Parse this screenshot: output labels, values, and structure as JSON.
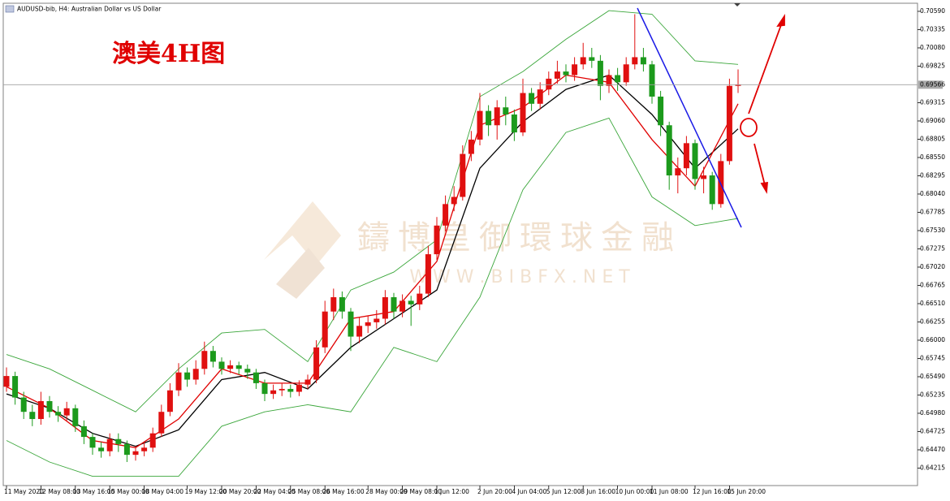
{
  "chart_data": {
    "type": "candlestick",
    "title": "澳美4H图",
    "subtitle": "AUDUSD-bib, H4: Australian Dollar vs US Dollar",
    "watermark": [
      "鑄博皇御環球金融",
      "W W W . B I B F X . N E T"
    ],
    "up_color": "#e01010",
    "down_color": "#1c9a1c",
    "ylim": [
      0.63971,
      0.70703
    ],
    "yticks": [
      {
        "value": 0.7059,
        "label": "0.70590"
      },
      {
        "value": 0.70335,
        "label": "0.70335"
      },
      {
        "value": 0.7008,
        "label": "0.70080"
      },
      {
        "value": 0.69825,
        "label": "0.69825"
      },
      {
        "value": 0.69315,
        "label": "0.69315"
      },
      {
        "value": 0.6906,
        "label": "0.69060"
      },
      {
        "value": 0.68805,
        "label": "0.68805"
      },
      {
        "value": 0.6855,
        "label": "0.68550"
      },
      {
        "value": 0.68295,
        "label": "0.68295"
      },
      {
        "value": 0.6804,
        "label": "0.68040"
      },
      {
        "value": 0.67785,
        "label": "0.67785"
      },
      {
        "value": 0.6753,
        "label": "0.67530"
      },
      {
        "value": 0.67275,
        "label": "0.67275"
      },
      {
        "value": 0.6702,
        "label": "0.67020"
      },
      {
        "value": 0.66765,
        "label": "0.66765"
      },
      {
        "value": 0.6651,
        "label": "0.66510"
      },
      {
        "value": 0.66255,
        "label": "0.66255"
      },
      {
        "value": 0.66,
        "label": "0.66000"
      },
      {
        "value": 0.65745,
        "label": "0.65745"
      },
      {
        "value": 0.6549,
        "label": "0.65490"
      },
      {
        "value": 0.65235,
        "label": "0.65235"
      },
      {
        "value": 0.6498,
        "label": "0.64980"
      },
      {
        "value": 0.64725,
        "label": "0.64725"
      },
      {
        "value": 0.6447,
        "label": "0.64470"
      },
      {
        "value": 0.64215,
        "label": "0.64215"
      }
    ],
    "current_price": {
      "value": 0.69566,
      "label": "0.69566"
    },
    "categories": [
      "11 May 2020",
      null,
      null,
      null,
      "12 May 08:00",
      null,
      null,
      null,
      "13 May 16:00",
      null,
      null,
      null,
      "15 May 00:00",
      null,
      null,
      null,
      "18 May 04:00",
      null,
      null,
      null,
      null,
      "19 May 12:00",
      null,
      null,
      null,
      "20 May 20:00",
      null,
      null,
      null,
      "22 May 04:00",
      null,
      null,
      null,
      "25 May 08:00",
      null,
      null,
      null,
      "26 May 16:00",
      null,
      null,
      null,
      null,
      "28 May 00:00",
      null,
      null,
      null,
      "29 May 08:00",
      null,
      null,
      null,
      "1 Jun 12:00",
      null,
      null,
      null,
      null,
      "2 Jun 20:00",
      null,
      null,
      null,
      "4 Jun 04:00",
      null,
      null,
      null,
      "5 Jun 12:00",
      null,
      null,
      null,
      "8 Jun 16:00",
      null,
      null,
      null,
      "10 Jun 00:00",
      null,
      null,
      null,
      "11 Jun 08:00",
      null,
      null,
      null,
      null,
      "12 Jun 16:00",
      null,
      null,
      null,
      "15 Jun 20:00",
      null
    ],
    "candles": [
      [
        0.6535,
        0.6562,
        0.6528,
        0.655
      ],
      [
        0.655,
        0.6556,
        0.651,
        0.652
      ],
      [
        0.652,
        0.6528,
        0.649,
        0.65
      ],
      [
        0.65,
        0.651,
        0.648,
        0.649
      ],
      [
        0.649,
        0.6528,
        0.6482,
        0.6515
      ],
      [
        0.6515,
        0.6522,
        0.6492,
        0.65
      ],
      [
        0.65,
        0.6508,
        0.6486,
        0.6495
      ],
      [
        0.6495,
        0.6514,
        0.6488,
        0.6505
      ],
      [
        0.6505,
        0.651,
        0.6472,
        0.648
      ],
      [
        0.648,
        0.6488,
        0.6455,
        0.6465
      ],
      [
        0.6465,
        0.647,
        0.644,
        0.645
      ],
      [
        0.645,
        0.6458,
        0.6436,
        0.6445
      ],
      [
        0.6445,
        0.647,
        0.6438,
        0.6462
      ],
      [
        0.6462,
        0.647,
        0.6444,
        0.6455
      ],
      [
        0.6455,
        0.646,
        0.643,
        0.644
      ],
      [
        0.644,
        0.6452,
        0.6432,
        0.6445
      ],
      [
        0.6445,
        0.6458,
        0.6438,
        0.645
      ],
      [
        0.645,
        0.6478,
        0.6444,
        0.647
      ],
      [
        0.647,
        0.651,
        0.6465,
        0.65
      ],
      [
        0.65,
        0.654,
        0.6494,
        0.653
      ],
      [
        0.653,
        0.6568,
        0.6522,
        0.6555
      ],
      [
        0.6555,
        0.6562,
        0.6535,
        0.6545
      ],
      [
        0.6545,
        0.6572,
        0.6538,
        0.656
      ],
      [
        0.656,
        0.6598,
        0.6552,
        0.6585
      ],
      [
        0.6585,
        0.6592,
        0.6562,
        0.657
      ],
      [
        0.657,
        0.6576,
        0.6552,
        0.656
      ],
      [
        0.656,
        0.6572,
        0.6554,
        0.6565
      ],
      [
        0.6565,
        0.657,
        0.6552,
        0.656
      ],
      [
        0.656,
        0.6566,
        0.6546,
        0.6555
      ],
      [
        0.6555,
        0.656,
        0.6532,
        0.654
      ],
      [
        0.654,
        0.6545,
        0.6515,
        0.6525
      ],
      [
        0.6525,
        0.6538,
        0.6518,
        0.653
      ],
      [
        0.653,
        0.654,
        0.6522,
        0.6532
      ],
      [
        0.6532,
        0.6538,
        0.652,
        0.6528
      ],
      [
        0.6528,
        0.6544,
        0.6522,
        0.6538
      ],
      [
        0.6538,
        0.6552,
        0.6532,
        0.6545
      ],
      [
        0.6545,
        0.66,
        0.654,
        0.659
      ],
      [
        0.659,
        0.6655,
        0.6582,
        0.664
      ],
      [
        0.664,
        0.6672,
        0.6628,
        0.666
      ],
      [
        0.666,
        0.6668,
        0.663,
        0.664
      ],
      [
        0.664,
        0.6645,
        0.6585,
        0.6605
      ],
      [
        0.6605,
        0.6632,
        0.6596,
        0.662
      ],
      [
        0.662,
        0.6634,
        0.661,
        0.6625
      ],
      [
        0.6625,
        0.6642,
        0.6616,
        0.663
      ],
      [
        0.663,
        0.667,
        0.6622,
        0.666
      ],
      [
        0.666,
        0.6666,
        0.663,
        0.664
      ],
      [
        0.664,
        0.6664,
        0.6632,
        0.6655
      ],
      [
        0.6655,
        0.6662,
        0.662,
        0.665
      ],
      [
        0.665,
        0.6676,
        0.6642,
        0.6665
      ],
      [
        0.6665,
        0.6732,
        0.666,
        0.672
      ],
      [
        0.672,
        0.6772,
        0.6712,
        0.676
      ],
      [
        0.676,
        0.6802,
        0.6752,
        0.679
      ],
      [
        0.679,
        0.6815,
        0.678,
        0.68
      ],
      [
        0.68,
        0.6872,
        0.6795,
        0.686
      ],
      [
        0.686,
        0.6892,
        0.685,
        0.688
      ],
      [
        0.688,
        0.6945,
        0.6872,
        0.692
      ],
      [
        0.692,
        0.6928,
        0.6885,
        0.69
      ],
      [
        0.69,
        0.6935,
        0.688,
        0.6925
      ],
      [
        0.6925,
        0.694,
        0.69,
        0.6915
      ],
      [
        0.6915,
        0.6922,
        0.6878,
        0.689
      ],
      [
        0.689,
        0.6965,
        0.6885,
        0.6945
      ],
      [
        0.6945,
        0.6952,
        0.692,
        0.693
      ],
      [
        0.693,
        0.696,
        0.6922,
        0.695
      ],
      [
        0.695,
        0.6975,
        0.6942,
        0.6965
      ],
      [
        0.6965,
        0.699,
        0.6958,
        0.6975
      ],
      [
        0.6975,
        0.6985,
        0.696,
        0.697
      ],
      [
        0.697,
        0.6995,
        0.6962,
        0.6985
      ],
      [
        0.6985,
        0.7015,
        0.6978,
        0.6995
      ],
      [
        0.6995,
        0.7008,
        0.698,
        0.699
      ],
      [
        0.699,
        0.6998,
        0.6935,
        0.6955
      ],
      [
        0.6955,
        0.6978,
        0.6945,
        0.697
      ],
      [
        0.697,
        0.698,
        0.6948,
        0.696
      ],
      [
        0.696,
        0.6995,
        0.6955,
        0.6985
      ],
      [
        0.6985,
        0.7055,
        0.6978,
        0.6995
      ],
      [
        0.6995,
        0.7008,
        0.6975,
        0.6985
      ],
      [
        0.6985,
        0.699,
        0.693,
        0.694
      ],
      [
        0.694,
        0.6948,
        0.6885,
        0.69
      ],
      [
        0.69,
        0.6905,
        0.681,
        0.683
      ],
      [
        0.683,
        0.6855,
        0.6805,
        0.684
      ],
      [
        0.684,
        0.6885,
        0.683,
        0.6875
      ],
      [
        0.6875,
        0.688,
        0.681,
        0.6825
      ],
      [
        0.6825,
        0.6842,
        0.6805,
        0.683
      ],
      [
        0.683,
        0.6835,
        0.6782,
        0.679
      ],
      [
        0.679,
        0.686,
        0.6785,
        0.685
      ],
      [
        0.685,
        0.6965,
        0.6845,
        0.6955
      ],
      [
        0.6955,
        0.6978,
        0.6945,
        0.6957
      ]
    ],
    "lines": [
      {
        "color": "#3aa63a",
        "x": [
          0,
          5,
          10,
          15,
          20,
          25,
          30,
          35,
          40,
          45,
          50,
          55,
          60,
          65,
          70,
          75,
          80,
          85
        ],
        "values": [
          0.658,
          0.656,
          0.653,
          0.65,
          0.656,
          0.661,
          0.6615,
          0.657,
          0.667,
          0.6695,
          0.674,
          0.694,
          0.6975,
          0.702,
          0.706,
          0.7055,
          0.699,
          0.6985
        ]
      },
      {
        "color": "#3aa63a",
        "x": [
          0,
          5,
          10,
          15,
          20,
          25,
          30,
          35,
          40,
          45,
          50,
          55,
          60,
          65,
          70,
          75,
          80,
          85
        ],
        "values": [
          0.646,
          0.643,
          0.641,
          0.641,
          0.641,
          0.648,
          0.65,
          0.651,
          0.65,
          0.659,
          0.657,
          0.666,
          0.681,
          0.689,
          0.691,
          0.68,
          0.676,
          0.677
        ]
      },
      {
        "color": "#000000",
        "x": [
          0,
          5,
          10,
          15,
          20,
          25,
          30,
          35,
          40,
          45,
          50,
          55,
          60,
          65,
          70,
          75,
          80,
          85
        ],
        "values": [
          0.6525,
          0.6505,
          0.647,
          0.6452,
          0.6475,
          0.6545,
          0.6555,
          0.6532,
          0.659,
          0.663,
          0.667,
          0.684,
          0.6905,
          0.695,
          0.697,
          0.6915,
          0.684,
          0.6895
        ]
      },
      {
        "color": "#e00000",
        "x": [
          0,
          5,
          10,
          15,
          20,
          25,
          30,
          35,
          40,
          45,
          50,
          55,
          60,
          65,
          70,
          75,
          80,
          85
        ],
        "values": [
          0.6535,
          0.6505,
          0.646,
          0.645,
          0.649,
          0.656,
          0.654,
          0.654,
          0.663,
          0.664,
          0.671,
          0.69,
          0.6925,
          0.697,
          0.696,
          0.688,
          0.6815,
          0.693
        ]
      }
    ]
  }
}
